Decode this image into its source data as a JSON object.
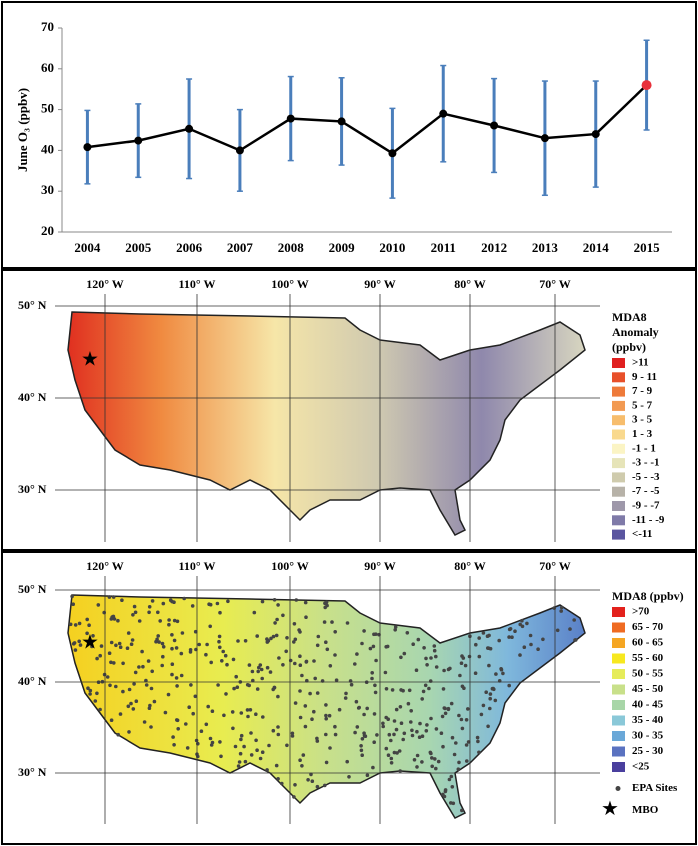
{
  "chart_data": {
    "type": "line",
    "ylabel": "June O₃ (ppbv)",
    "categories": [
      "2004",
      "2005",
      "2006",
      "2007",
      "2008",
      "2009",
      "2010",
      "2011",
      "2012",
      "2013",
      "2014",
      "2015"
    ],
    "series": [
      {
        "name": "June O3",
        "color": "#000000",
        "error_color": "#4a7ebb",
        "values": [
          40.8,
          42.4,
          45.3,
          40.0,
          47.8,
          47.1,
          39.3,
          49.0,
          46.1,
          43.0,
          44.0,
          56.0
        ],
        "errors": [
          9.0,
          9.0,
          12.2,
          10.0,
          10.3,
          10.7,
          11.0,
          11.8,
          11.5,
          14.0,
          13.0,
          11.0
        ],
        "marker_colors": [
          "#000000",
          "#000000",
          "#000000",
          "#000000",
          "#000000",
          "#000000",
          "#000000",
          "#000000",
          "#000000",
          "#000000",
          "#000000",
          "#e8303a"
        ]
      }
    ],
    "ylim": [
      20,
      70
    ],
    "yticks": [
      20,
      30,
      40,
      50,
      60,
      70
    ]
  },
  "maps": [
    {
      "lon_labels": [
        "120° W",
        "110° W",
        "100° W",
        "90° W",
        "80° W",
        "70° W"
      ],
      "lat_labels": [
        "50° N",
        "40° N",
        "30° N"
      ],
      "legend_title": [
        "MDA8",
        "Anomaly",
        "(ppbv)"
      ],
      "legend": [
        {
          "label": ">11",
          "color": "#e02020"
        },
        {
          "label": "9 - 11",
          "color": "#e8502a"
        },
        {
          "label": "7 - 9",
          "color": "#ee7a3a"
        },
        {
          "label": "5 - 7",
          "color": "#f29a52"
        },
        {
          "label": "3 - 5",
          "color": "#f7bd6c"
        },
        {
          "label": "1 - 3",
          "color": "#f9d98e"
        },
        {
          "label": "-1 - 1",
          "color": "#fbf4c4"
        },
        {
          "label": "-3 - -1",
          "color": "#e6e4b8"
        },
        {
          "label": "-5 - -3",
          "color": "#cfcbad"
        },
        {
          "label": "-7 - -5",
          "color": "#b7b2a8"
        },
        {
          "label": "-9 - -7",
          "color": "#9e98aa"
        },
        {
          "label": "-11 - -9",
          "color": "#7f7aa8"
        },
        {
          "label": "<-11",
          "color": "#5a55a0"
        }
      ]
    },
    {
      "lon_labels": [
        "120° W",
        "110° W",
        "100° W",
        "90° W",
        "80° W",
        "70° W"
      ],
      "lat_labels": [
        "50° N",
        "40° N",
        "30° N"
      ],
      "legend_title": [
        "MDA8 (ppbv)"
      ],
      "legend": [
        {
          "label": ">70",
          "color": "#e3211c"
        },
        {
          "label": "65 - 70",
          "color": "#ef6b22"
        },
        {
          "label": "60 - 65",
          "color": "#f5a623"
        },
        {
          "label": "55 - 60",
          "color": "#f7e81f"
        },
        {
          "label": "50 - 55",
          "color": "#e6ec5a"
        },
        {
          "label": "45 - 50",
          "color": "#c8e08a"
        },
        {
          "label": "40 - 45",
          "color": "#a8d6a8"
        },
        {
          "label": "35 - 40",
          "color": "#8ac8d8"
        },
        {
          "label": "30 - 35",
          "color": "#6aa8d8"
        },
        {
          "label": "25 - 30",
          "color": "#5a72c0"
        },
        {
          "label": "<25",
          "color": "#4a3f9e"
        }
      ],
      "sites_label": "EPA Sites",
      "mbo_label": "MBO"
    }
  ]
}
